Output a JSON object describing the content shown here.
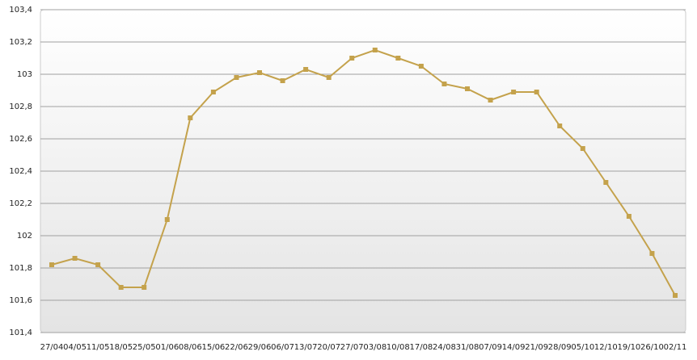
{
  "chart_data": {
    "type": "line",
    "categories": [
      "27/04",
      "04/05",
      "11/05",
      "18/05",
      "25/05",
      "01/06",
      "08/06",
      "15/06",
      "22/06",
      "29/06",
      "06/07",
      "13/07",
      "20/07",
      "27/07",
      "03/08",
      "10/08",
      "17/08",
      "24/08",
      "31/08",
      "07/09",
      "14/09",
      "21/09",
      "28/09",
      "05/10",
      "12/10",
      "19/10",
      "26/10",
      "02/11"
    ],
    "series": [
      {
        "color": "#c4a24c",
        "values": [
          101.82,
          101.86,
          101.82,
          101.68,
          101.68,
          102.1,
          102.73,
          102.89,
          102.98,
          103.01,
          102.96,
          103.03,
          102.98,
          103.1,
          103.15,
          103.1,
          103.05,
          102.94,
          102.91,
          102.84,
          102.89,
          102.89,
          102.68,
          102.54,
          102.33,
          102.12,
          101.89,
          101.63
        ]
      }
    ],
    "ylim": [
      101.4,
      103.4
    ],
    "yticks": [
      {
        "value": 101.4,
        "label": "101,4"
      },
      {
        "value": 101.6,
        "label": "101,6"
      },
      {
        "value": 101.8,
        "label": "101,8"
      },
      102,
      {
        "value": 102.2,
        "label": "102,2"
      },
      {
        "value": 102.4,
        "label": "102,4"
      },
      {
        "value": 102.6,
        "label": "102,6"
      },
      {
        "value": 102.8,
        "label": "102,8"
      },
      103,
      {
        "value": 103.2,
        "label": "103,2"
      },
      {
        "value": 103.4,
        "label": "103,4"
      }
    ],
    "grid": true
  }
}
